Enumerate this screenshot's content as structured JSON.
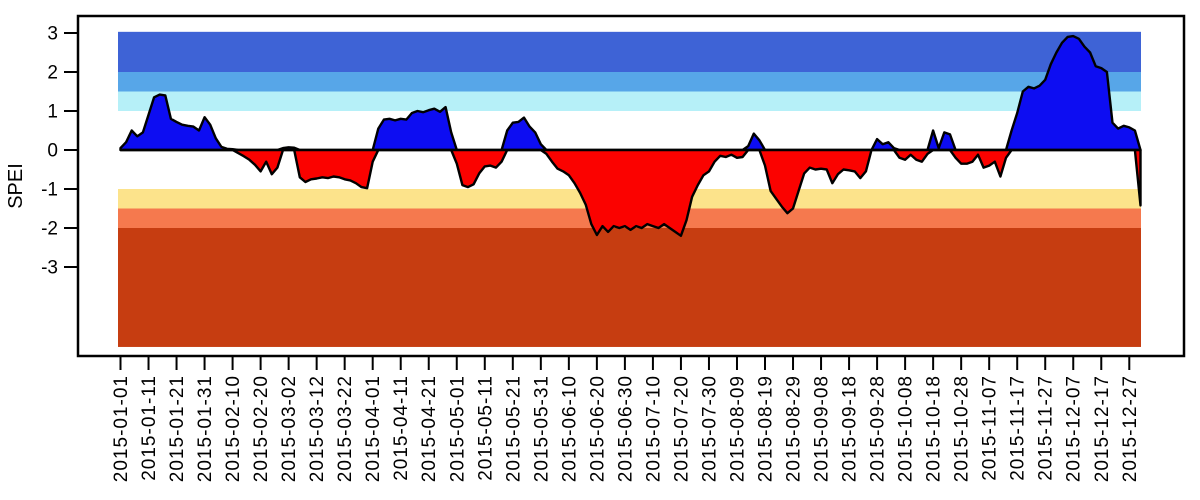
{
  "figure": {
    "background": "#ffffff",
    "border_color": "#000000"
  },
  "chart_data": {
    "type": "area",
    "title": "",
    "xlabel": "",
    "ylabel": "SPEI",
    "series_name": "SPEI",
    "x_start_date": "2015-01-01",
    "x_end_date": "2015-12-31",
    "x_step_days": 2,
    "x_tick_step_days": 10,
    "x_tick_labels": [
      "2015-01-01",
      "2015-01-11",
      "2015-01-21",
      "2015-01-31",
      "2015-02-10",
      "2015-02-20",
      "2015-03-02",
      "2015-03-12",
      "2015-03-22",
      "2015-04-01",
      "2015-04-11",
      "2015-04-21",
      "2015-05-01",
      "2015-05-11",
      "2015-05-21",
      "2015-05-31",
      "2015-06-10",
      "2015-06-20",
      "2015-06-30",
      "2015-07-10",
      "2015-07-20",
      "2015-07-30",
      "2015-08-09",
      "2015-08-19",
      "2015-08-29",
      "2015-09-08",
      "2015-09-18",
      "2015-09-28",
      "2015-10-08",
      "2015-10-18",
      "2015-10-28",
      "2015-11-07",
      "2015-11-17",
      "2015-11-27",
      "2015-12-07",
      "2015-12-17",
      "2015-12-27"
    ],
    "y_ticks": [
      3,
      2,
      1,
      0,
      -1,
      -2,
      -3
    ],
    "ylim": [
      -5.28,
      3.38
    ],
    "grid": false,
    "legend": "none",
    "values": [
      0.05,
      0.2,
      0.5,
      0.35,
      0.45,
      0.9,
      1.35,
      1.42,
      1.4,
      0.8,
      0.72,
      0.65,
      0.62,
      0.6,
      0.5,
      0.84,
      0.65,
      0.3,
      0.08,
      0.03,
      0.02,
      -0.08,
      -0.16,
      -0.25,
      -0.38,
      -0.55,
      -0.3,
      -0.62,
      -0.45,
      0.05,
      0.07,
      0.06,
      -0.7,
      -0.82,
      -0.75,
      -0.73,
      -0.7,
      -0.72,
      -0.68,
      -0.7,
      -0.75,
      -0.78,
      -0.85,
      -0.95,
      -0.98,
      -0.3,
      0.55,
      0.78,
      0.8,
      0.76,
      0.8,
      0.78,
      0.95,
      1.0,
      0.97,
      1.02,
      1.06,
      0.98,
      1.1,
      0.45,
      -0.35,
      -0.9,
      -0.95,
      -0.88,
      -0.6,
      -0.42,
      -0.4,
      -0.45,
      -0.3,
      0.5,
      0.7,
      0.72,
      0.83,
      0.6,
      0.45,
      0.15,
      -0.1,
      -0.3,
      -0.48,
      -0.55,
      -0.65,
      -0.85,
      -1.1,
      -1.4,
      -1.9,
      -2.18,
      -1.95,
      -2.1,
      -1.95,
      -2.0,
      -1.95,
      -2.05,
      -1.95,
      -2.0,
      -1.9,
      -1.95,
      -2.0,
      -1.9,
      -2.0,
      -2.1,
      -2.2,
      -1.8,
      -1.2,
      -0.9,
      -0.65,
      -0.55,
      -0.3,
      -0.15,
      -0.18,
      -0.12,
      -0.2,
      -0.18,
      0.1,
      0.42,
      0.25,
      -0.4,
      -1.05,
      -1.25,
      -1.45,
      -1.62,
      -1.5,
      -1.05,
      -0.6,
      -0.45,
      -0.5,
      -0.48,
      -0.5,
      -0.85,
      -0.62,
      -0.5,
      -0.52,
      -0.55,
      -0.72,
      -0.55,
      0.0,
      0.28,
      0.15,
      0.2,
      0.05,
      -0.2,
      -0.25,
      -0.12,
      -0.25,
      -0.3,
      -0.1,
      0.5,
      0.05,
      0.45,
      0.4,
      -0.2,
      -0.35,
      -0.35,
      -0.3,
      -0.12,
      -0.45,
      -0.4,
      -0.3,
      -0.68,
      -0.2,
      0.5,
      0.95,
      1.5,
      1.62,
      1.58,
      1.65,
      1.8,
      2.2,
      2.5,
      2.75,
      2.9,
      2.92,
      2.85,
      2.65,
      2.5,
      2.15,
      2.1,
      2.0,
      0.7,
      0.55,
      0.62,
      0.58,
      0.5,
      -1.42
    ],
    "bands": [
      {
        "from": 2.0,
        "to": 3.03,
        "color": "#3E63D6"
      },
      {
        "from": 1.5,
        "to": 2.0,
        "color": "#57A6E8"
      },
      {
        "from": 1.0,
        "to": 1.5,
        "color": "#B6F0F8"
      },
      {
        "from": -1.5,
        "to": -1.0,
        "color": "#FCE38B"
      },
      {
        "from": -2.0,
        "to": -1.5,
        "color": "#F5794E"
      },
      {
        "from": -5.05,
        "to": -2.0,
        "color": "#C63D11"
      }
    ],
    "colors": {
      "positive_fill": "#0D0DF2",
      "negative_fill": "#FB0200",
      "line": "#000000"
    }
  }
}
